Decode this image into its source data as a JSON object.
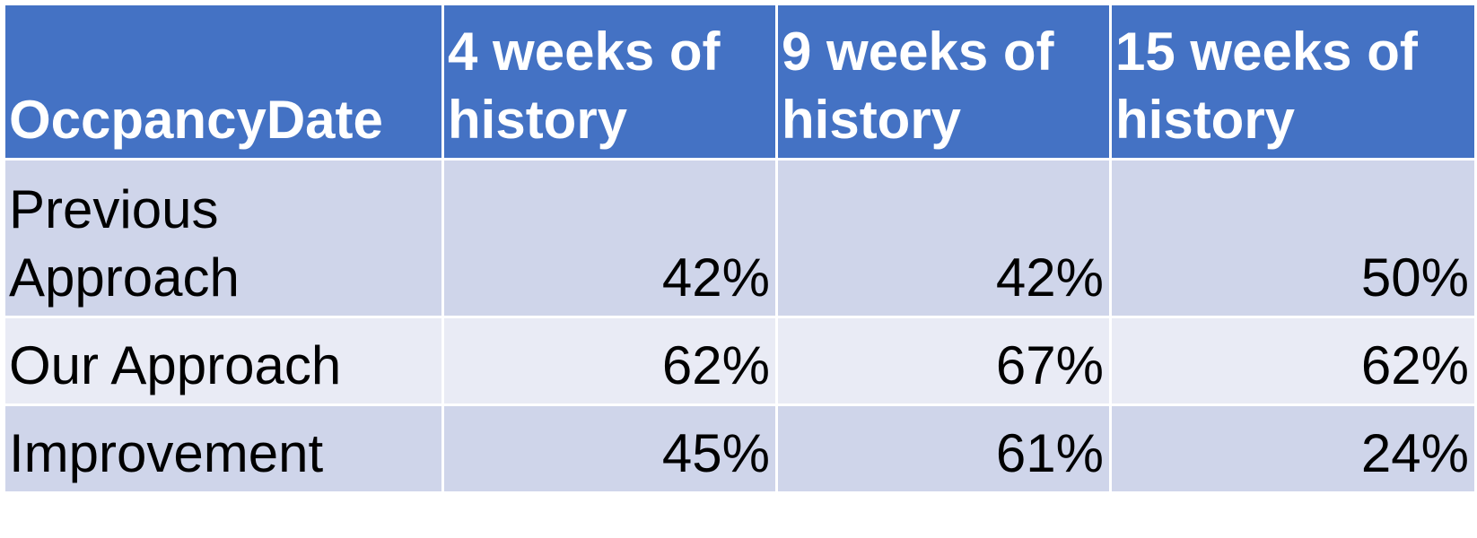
{
  "table": {
    "headers": [
      "OccpancyDate",
      "4 weeks of history",
      "9 weeks of history",
      "15 weeks of history"
    ],
    "rows": [
      {
        "label": "Previous Approach",
        "values": [
          "42%",
          "42%",
          "50%"
        ]
      },
      {
        "label": "Our Approach",
        "values": [
          "62%",
          "67%",
          "62%"
        ]
      },
      {
        "label": "Improvement",
        "values": [
          "45%",
          "61%",
          "24%"
        ]
      }
    ]
  },
  "colors": {
    "header_bg": "#4472c4",
    "header_text": "#ffffff",
    "band_dark": "#cfd5ea",
    "band_light": "#e9ebf5",
    "cell_text": "#000000"
  }
}
